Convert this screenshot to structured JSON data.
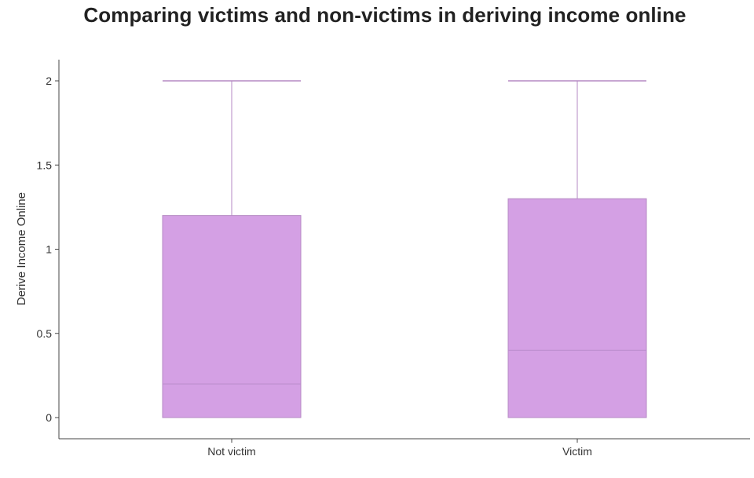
{
  "chart_data": {
    "type": "box",
    "title": "Comparing victims and non-victims in deriving income online",
    "xlabel": "",
    "ylabel": "Derive Income Online",
    "ylim": [
      0,
      2
    ],
    "yticks": [
      {
        "value": 0,
        "label": "0"
      },
      {
        "value": 0.5,
        "label": "0.5"
      },
      {
        "value": 1,
        "label": "1"
      },
      {
        "value": 1.5,
        "label": "1.5"
      },
      {
        "value": 2,
        "label": "2"
      }
    ],
    "categories": [
      "Not victim",
      "Victim"
    ],
    "boxes": [
      {
        "category": "Not victim",
        "min": 0,
        "q1": 0,
        "median": 0.2,
        "q3": 1.2,
        "max": 2
      },
      {
        "category": "Victim",
        "min": 0,
        "q1": 0,
        "median": 0.4,
        "q3": 1.3,
        "max": 2
      }
    ],
    "grid": false,
    "colors": {
      "box_fill": "#d4a0e4",
      "box_stroke": "#b68ac4",
      "median_line": "#b98ccb",
      "axis": "#444444"
    }
  }
}
